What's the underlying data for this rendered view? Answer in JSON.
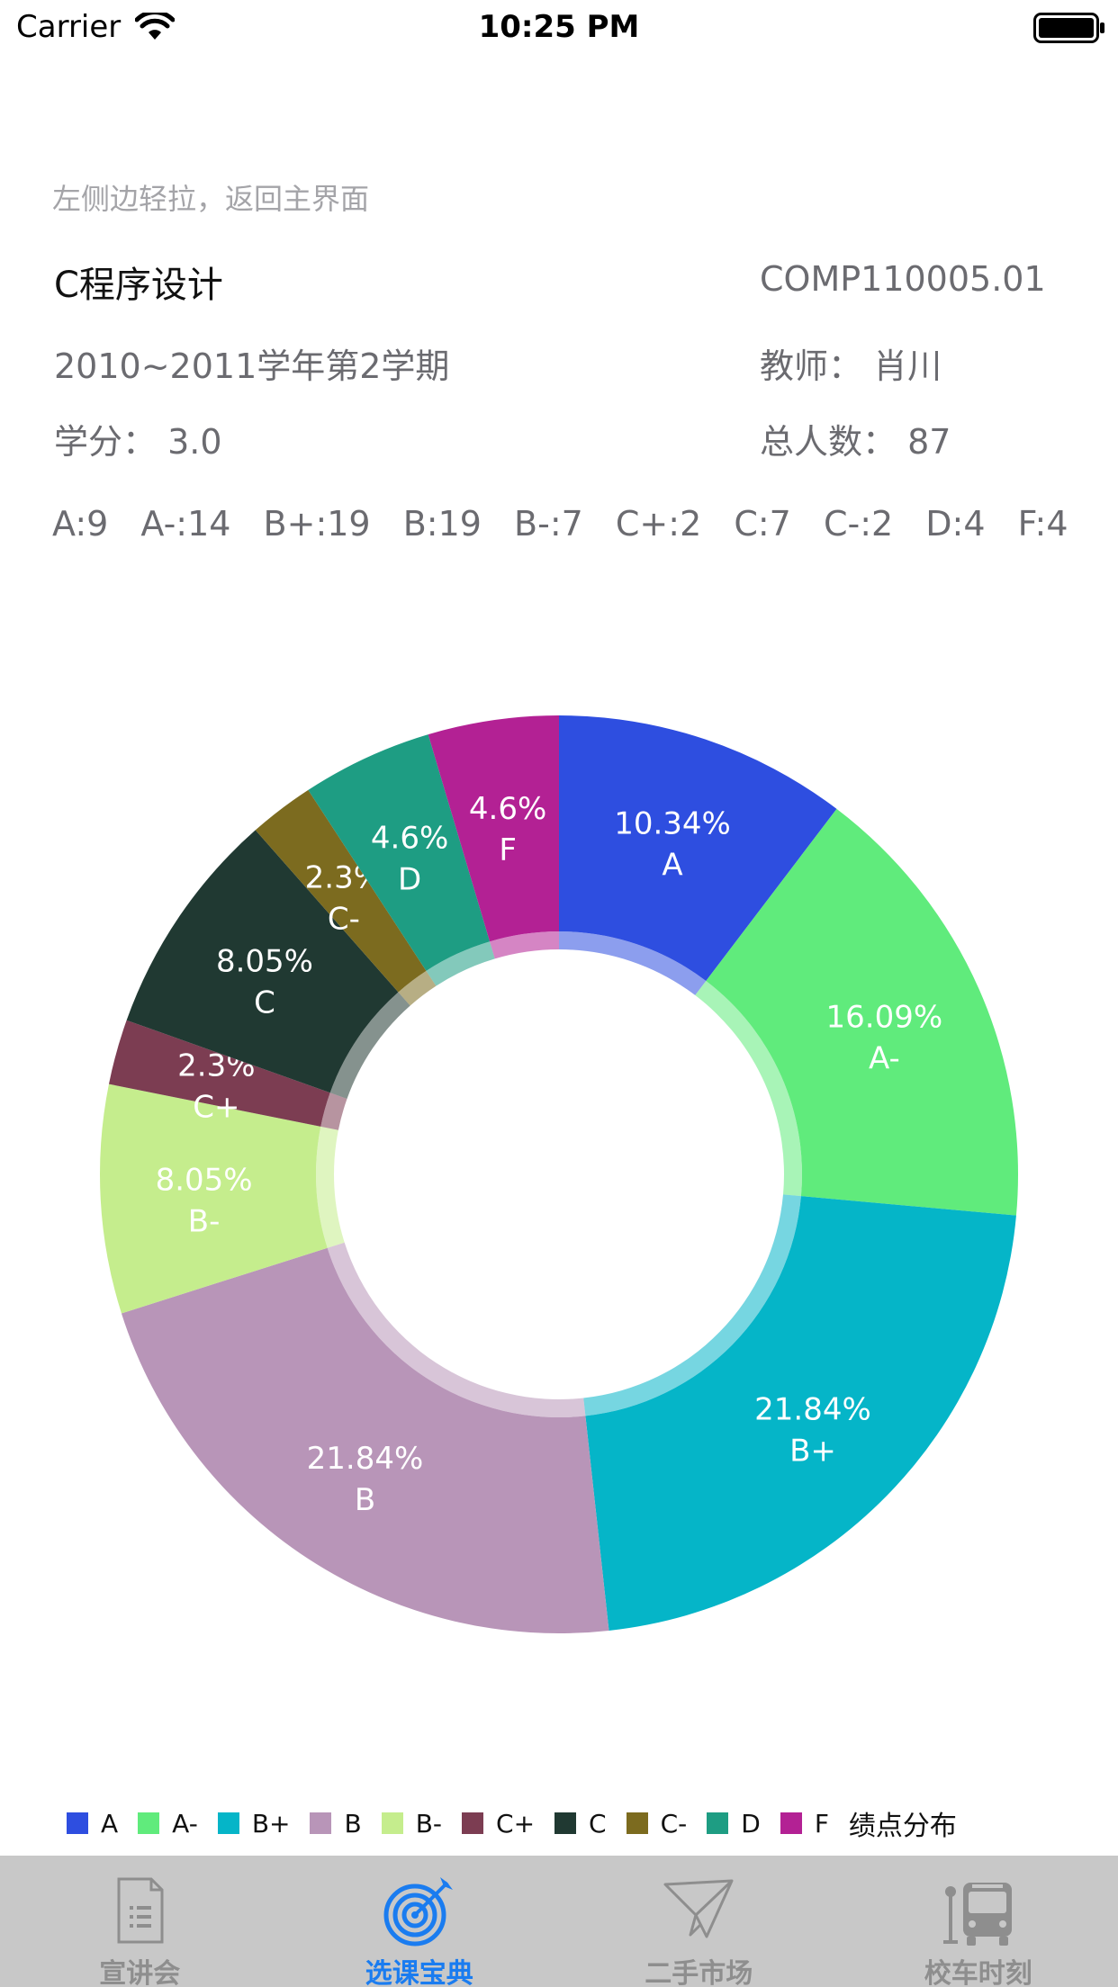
{
  "status_bar": {
    "carrier": "Carrier",
    "time": "10:25 PM"
  },
  "hint": "左侧边轻拉，返回主界面",
  "course": {
    "name": "C程序设计",
    "code": "COMP110005.01",
    "term": "2010~2011学年第2学期",
    "teacher": "教师：  肖川",
    "credit": "学分：  3.0",
    "total": "总人数：  87"
  },
  "grade_counts": [
    "A:9",
    "A-:14",
    "B+:19",
    "B:19",
    "B-:7",
    "C+:2",
    "C:7",
    "C-:2",
    "D:4",
    "F:4"
  ],
  "chart_data": {
    "type": "pie",
    "title": "",
    "legend_title": "绩点分布",
    "legend_position": "bottom-left",
    "categories": [
      "A",
      "A-",
      "B+",
      "B",
      "B-",
      "C+",
      "C",
      "C-",
      "D",
      "F"
    ],
    "values": [
      10.34,
      16.09,
      21.84,
      21.84,
      8.05,
      2.3,
      8.05,
      2.3,
      4.6,
      4.6
    ],
    "labels": [
      "10.34%",
      "16.09%",
      "21.84%",
      "21.84%",
      "8.05%",
      "2.3%",
      "8.05%",
      "2.3%",
      "4.6%",
      "4.6%"
    ],
    "colors": [
      "#2e4ee0",
      "#60eb7c",
      "#05b5c8",
      "#b895b8",
      "#c5ed8d",
      "#7c3d52",
      "#203932",
      "#7c6b1f",
      "#1e9d83",
      "#b32194"
    ],
    "donut": true
  },
  "tabbar": {
    "tabs": [
      {
        "label": "宣讲会",
        "icon": "document-list-icon",
        "active": false
      },
      {
        "label": "选课宝典",
        "icon": "target-icon",
        "active": true
      },
      {
        "label": "二手市场",
        "icon": "paper-plane-icon",
        "active": false
      },
      {
        "label": "校车时刻",
        "icon": "bus-icon",
        "active": false
      }
    ]
  }
}
